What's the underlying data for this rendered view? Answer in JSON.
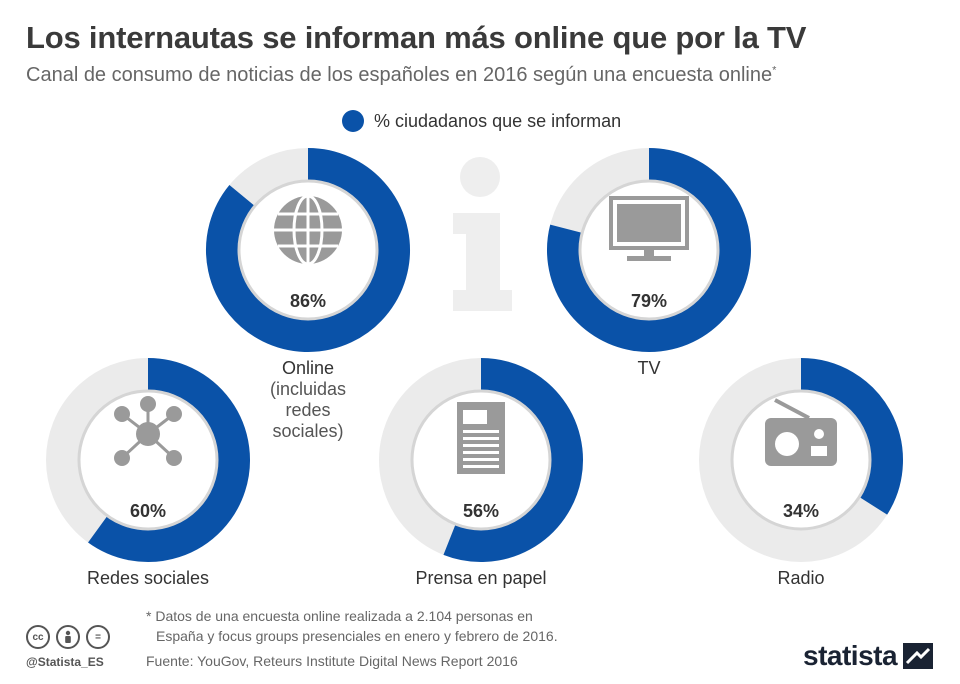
{
  "title": "Los internautas se informan más online que por la TV",
  "subtitle": "Canal de consumo de noticias de los españoles en 2016 según una encuesta online",
  "subtitle_mark": "*",
  "legend": {
    "label": "% ciudadanos que se informan",
    "color": "#0a52a8"
  },
  "colors": {
    "fill": "#0a52a8",
    "track": "#ebebeb",
    "inner_ring": "#d5d5d5",
    "icon": "#9a9a9a",
    "watermark": "#eeeeee"
  },
  "chart_data": {
    "type": "donut",
    "unit": "%",
    "series": [
      {
        "category": "Online (incluidas redes sociales)",
        "label_lines": [
          "Online",
          "(incluidas",
          "redes",
          "sociales)"
        ],
        "value": 86,
        "value_label": "86%",
        "icon": "globe-icon"
      },
      {
        "category": "TV",
        "label_lines": [
          "TV"
        ],
        "value": 79,
        "value_label": "79%",
        "icon": "tv-icon"
      },
      {
        "category": "Redes sociales",
        "label_lines": [
          "Redes sociales"
        ],
        "value": 60,
        "value_label": "60%",
        "icon": "network-icon"
      },
      {
        "category": "Prensa en papel",
        "label_lines": [
          "Prensa en papel"
        ],
        "value": 56,
        "value_label": "56%",
        "icon": "newspaper-icon"
      },
      {
        "category": "Radio",
        "label_lines": [
          "Radio"
        ],
        "value": 34,
        "value_label": "34%",
        "icon": "radio-icon"
      }
    ]
  },
  "footnote": {
    "line1": "* Datos de una encuesta online realizada a 2.104 personas en",
    "line2": "España y focus groups presenciales en enero y febrero de 2016."
  },
  "source": "Fuente: YouGov, Reteurs Institute Digital News Report 2016",
  "handle": "@Statista_ES",
  "license_icons": [
    "cc",
    "by",
    "="
  ],
  "brand": "statista"
}
